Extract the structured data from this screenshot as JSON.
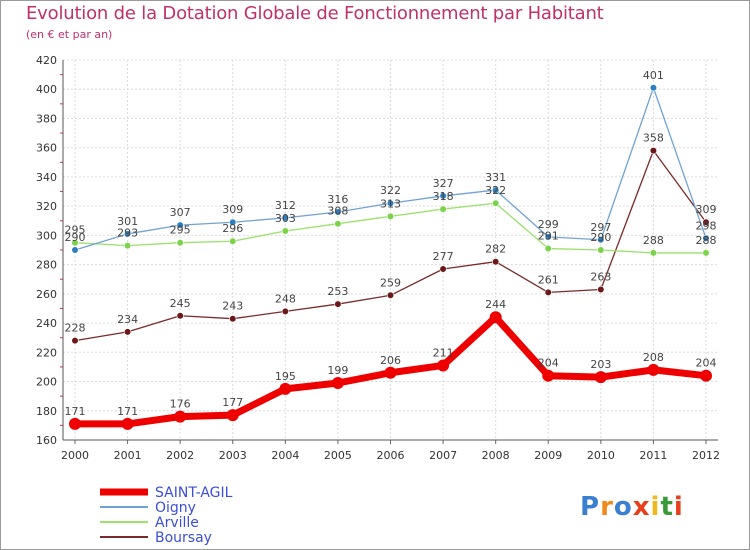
{
  "title": "Evolution de la Dotation Globale de Fonctionnement par Habitant",
  "subtitle": "(en € et par an)",
  "logo": {
    "text": "Proxiti",
    "letters": [
      "P",
      "r",
      "o",
      "x",
      "i",
      "t",
      "i"
    ],
    "colors": [
      "#3a7fd0",
      "#f08a1c",
      "#3a7fd0",
      "#e8401c",
      "#f0b81c",
      "#3a9a3a",
      "#e8401c"
    ]
  },
  "chart_data": {
    "type": "line",
    "title": "Evolution de la Dotation Globale de Fonctionnement par Habitant",
    "subtitle": "(en € et par an)",
    "xlabel": "",
    "ylabel": "",
    "x": [
      "2000",
      "2001",
      "2002",
      "2003",
      "2004",
      "2005",
      "2006",
      "2007",
      "2008",
      "2009",
      "2010",
      "2011",
      "2012"
    ],
    "ylim": [
      160,
      420
    ],
    "yticks": [
      "160",
      "180",
      "200",
      "220",
      "240",
      "260",
      "280",
      "300",
      "320",
      "340",
      "360",
      "380",
      "400",
      "420"
    ],
    "grid": true,
    "legend_position": "bottom-left",
    "series": [
      {
        "name": "SAINT-AGIL",
        "color": "#ee0000",
        "marker": "#ee0000",
        "values": [
          171,
          171,
          176,
          177,
          195,
          199,
          206,
          211,
          244,
          204,
          203,
          208,
          204
        ],
        "labels": [
          "171",
          "171",
          "176",
          "177",
          "195",
          "199",
          "206",
          "211",
          "244",
          "204",
          "203",
          "208",
          "204"
        ]
      },
      {
        "name": "Oigny",
        "color": "#6fa3d2",
        "marker": "#2e7fbf",
        "values": [
          290,
          301,
          307,
          309,
          312,
          316,
          322,
          327,
          331,
          299,
          297,
          401,
          298
        ],
        "labels": [
          "290",
          "301",
          "307",
          "309",
          "312",
          "316",
          "322",
          "327",
          "331",
          "299",
          "297",
          "401",
          "298"
        ]
      },
      {
        "name": "Arville",
        "color": "#99e26b",
        "marker": "#7cd24a",
        "values": [
          295,
          293,
          295,
          296,
          303,
          308,
          313,
          318,
          322,
          291,
          290,
          288,
          288
        ],
        "labels": [
          "295",
          "293",
          "295",
          "296",
          "303",
          "308",
          "313",
          "318",
          "322",
          "291",
          "290",
          "288",
          "288"
        ]
      },
      {
        "name": "Boursay",
        "color": "#7a2a2a",
        "marker": "#6a1818",
        "values": [
          228,
          234,
          245,
          243,
          248,
          253,
          259,
          277,
          282,
          261,
          263,
          358,
          309
        ],
        "labels": [
          "228",
          "234",
          "245",
          "243",
          "248",
          "253",
          "259",
          "277",
          "282",
          "261",
          "263",
          "358",
          "309"
        ]
      }
    ]
  }
}
